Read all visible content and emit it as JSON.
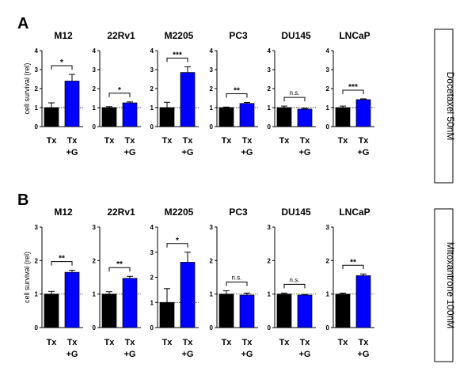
{
  "colors": {
    "tx": "#000000",
    "txg": "#0000ff",
    "axis": "#000000",
    "box_border": "#000000"
  },
  "chart_data": [
    {
      "panel": "A",
      "row_label": "Docetaxel 50nM",
      "ylabel": "cell survival (rel)",
      "type": "bar",
      "charts": [
        {
          "title": "M12",
          "ylim": [
            0,
            4
          ],
          "yticks": [
            "0",
            "1",
            "2",
            "3",
            "4"
          ],
          "categories": [
            "Tx",
            "Tx\n+G"
          ],
          "values": [
            1.0,
            2.4
          ],
          "errors": [
            0.25,
            0.35
          ],
          "significance": "*"
        },
        {
          "title": "22Rv1",
          "ylim": [
            0,
            4
          ],
          "yticks": [
            "0",
            "1",
            "2",
            "3",
            "4"
          ],
          "categories": [
            "Tx",
            "Tx\n+G"
          ],
          "values": [
            1.0,
            1.25
          ],
          "errors": [
            0.05,
            0.05
          ],
          "significance": "*"
        },
        {
          "title": "M2205",
          "ylim": [
            0,
            4
          ],
          "yticks": [
            "0",
            "1",
            "2",
            "3",
            "4"
          ],
          "categories": [
            "Tx",
            "Tx\n+G"
          ],
          "values": [
            1.0,
            2.85
          ],
          "errors": [
            0.28,
            0.3
          ],
          "significance": "***"
        },
        {
          "title": "PC3",
          "ylim": [
            0,
            4
          ],
          "yticks": [
            "0",
            "1",
            "2",
            "3",
            "4"
          ],
          "categories": [
            "Tx",
            "Tx\n+G"
          ],
          "values": [
            1.0,
            1.22
          ],
          "errors": [
            0.03,
            0.05
          ],
          "significance": "**"
        },
        {
          "title": "DU145",
          "ylim": [
            0,
            4
          ],
          "yticks": [
            "0",
            "1",
            "2",
            "3",
            "4"
          ],
          "categories": [
            "Tx",
            "Tx\n+G"
          ],
          "values": [
            1.0,
            0.92
          ],
          "errors": [
            0.08,
            0.04
          ],
          "significance": "n.s."
        },
        {
          "title": "LNCaP",
          "ylim": [
            0,
            4
          ],
          "yticks": [
            "0",
            "1",
            "2",
            "3",
            "4"
          ],
          "categories": [
            "Tx",
            "Tx\n+G"
          ],
          "values": [
            1.0,
            1.42
          ],
          "errors": [
            0.08,
            0.04
          ],
          "significance": "***"
        }
      ]
    },
    {
      "panel": "B",
      "row_label": "Mitoxantrone 100nM",
      "ylabel": "cell survival (rel)",
      "type": "bar",
      "charts": [
        {
          "title": "M12",
          "ylim": [
            0,
            3
          ],
          "yticks": [
            "0",
            "1",
            "2",
            "3"
          ],
          "categories": [
            "Tx",
            "Tx\n+G"
          ],
          "values": [
            1.0,
            1.65
          ],
          "errors": [
            0.08,
            0.06
          ],
          "significance": "**"
        },
        {
          "title": "22Rv1",
          "ylim": [
            0,
            3
          ],
          "yticks": [
            "0",
            "1",
            "2",
            "3"
          ],
          "categories": [
            "Tx",
            "Tx\n+G"
          ],
          "values": [
            1.0,
            1.47
          ],
          "errors": [
            0.07,
            0.06
          ],
          "significance": "**"
        },
        {
          "title": "M2205",
          "ylim": [
            0,
            4
          ],
          "yticks": [
            "0",
            "1",
            "2",
            "3",
            "4"
          ],
          "categories": [
            "Tx",
            "Tx\n+G"
          ],
          "values": [
            1.0,
            2.6
          ],
          "errors": [
            0.55,
            0.4
          ],
          "significance": "*"
        },
        {
          "title": "PC3",
          "ylim": [
            0,
            3
          ],
          "yticks": [
            "0",
            "1",
            "2",
            "3"
          ],
          "categories": [
            "Tx",
            "Tx\n+G"
          ],
          "values": [
            1.0,
            0.97
          ],
          "errors": [
            0.1,
            0.06
          ],
          "significance": "n.s."
        },
        {
          "title": "DU145",
          "ylim": [
            0,
            3
          ],
          "yticks": [
            "0",
            "1",
            "2",
            "3"
          ],
          "categories": [
            "Tx",
            "Tx\n+G"
          ],
          "values": [
            1.0,
            0.97
          ],
          "errors": [
            0.03,
            0.02
          ],
          "significance": "n.s."
        },
        {
          "title": "LNCaP",
          "ylim": [
            0,
            3
          ],
          "yticks": [
            "0",
            "1",
            "2",
            "3"
          ],
          "categories": [
            "Tx",
            "Tx\n+G"
          ],
          "values": [
            1.0,
            1.55
          ],
          "errors": [
            0.03,
            0.05
          ],
          "significance": "**"
        }
      ]
    }
  ]
}
